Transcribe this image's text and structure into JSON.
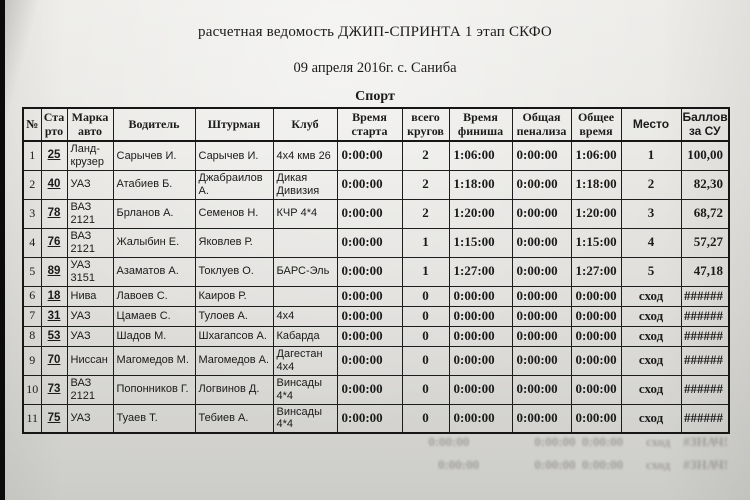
{
  "photo_colors": {
    "paper": "#e9e8e5",
    "ink": "#1b1b1b",
    "edge": "#0b0b0b"
  },
  "header": {
    "title": "расчетная ведомость ДЖИП-СПРИНТА 1 этап СКФО",
    "date_line": "09 апреля 2016г. с. Саниба",
    "category": "Спорт"
  },
  "table": {
    "columns": [
      {
        "key": "num",
        "label": "№"
      },
      {
        "key": "start",
        "label": "Ста\nрто"
      },
      {
        "key": "car",
        "label": "Марка\nавто"
      },
      {
        "key": "driver",
        "label": "Водитель"
      },
      {
        "key": "navigator",
        "label": "Штурман"
      },
      {
        "key": "club",
        "label": "Клуб"
      },
      {
        "key": "start_time",
        "label": "Время\nстарта"
      },
      {
        "key": "laps",
        "label": "всего\nкругов"
      },
      {
        "key": "finish_time",
        "label": "Время\nфиниша"
      },
      {
        "key": "penalty",
        "label": "Общая\nпенализа"
      },
      {
        "key": "total_time",
        "label": "Общее\nвремя"
      },
      {
        "key": "place",
        "label": "Место"
      },
      {
        "key": "points",
        "label": "Баллов\nза СУ"
      }
    ],
    "rows": [
      {
        "num": "1",
        "start": "25",
        "car": "Ланд-\nкрузер",
        "driver": "Сарычев И.",
        "navigator": "Сарычев И.",
        "club": "4х4 кмв 26",
        "start_time": "0:00:00",
        "laps": "2",
        "finish_time": "1:06:00",
        "penalty": "0:00:00",
        "total_time": "1:06:00",
        "place": "1",
        "points": "100,00"
      },
      {
        "num": "2",
        "start": "40",
        "car": "УАЗ",
        "driver": "Атабиев Б.",
        "navigator": "Джабраилов А.",
        "club": "Дикая\nДивизия",
        "start_time": "0:00:00",
        "laps": "2",
        "finish_time": "1:18:00",
        "penalty": "0:00:00",
        "total_time": "1:18:00",
        "place": "2",
        "points": "82,30"
      },
      {
        "num": "3",
        "start": "78",
        "car": "ВАЗ\n2121",
        "driver": "Брланов А.",
        "navigator": "Семенов Н.",
        "club": "КЧР 4*4",
        "start_time": "0:00:00",
        "laps": "2",
        "finish_time": "1:20:00",
        "penalty": "0:00:00",
        "total_time": "1:20:00",
        "place": "3",
        "points": "68,72"
      },
      {
        "num": "4",
        "start": "76",
        "car": "ВАЗ\n2121",
        "driver": "Жалыбин Е.",
        "navigator": "Яковлев Р.",
        "club": "",
        "start_time": "0:00:00",
        "laps": "1",
        "finish_time": "1:15:00",
        "penalty": "0:00:00",
        "total_time": "1:15:00",
        "place": "4",
        "points": "57,27"
      },
      {
        "num": "5",
        "start": "89",
        "car": "УАЗ\n3151",
        "driver": "Азаматов А.",
        "navigator": "Токлуев О.",
        "club": "БАРС-Эль",
        "start_time": "0:00:00",
        "laps": "1",
        "finish_time": "1:27:00",
        "penalty": "0:00:00",
        "total_time": "1:27:00",
        "place": "5",
        "points": "47,18"
      },
      {
        "num": "6",
        "start": "18",
        "car": "Нива",
        "driver": "Лавоев С.",
        "navigator": "Каиров Р.",
        "club": "",
        "start_time": "0:00:00",
        "laps": "0",
        "finish_time": "0:00:00",
        "penalty": "0:00:00",
        "total_time": "0:00:00",
        "place": "сход",
        "points": "######"
      },
      {
        "num": "7",
        "start": "31",
        "car": "УАЗ",
        "driver": "Цамаев С.",
        "navigator": "Тулоев А.",
        "club": "4х4",
        "start_time": "0:00:00",
        "laps": "0",
        "finish_time": "0:00:00",
        "penalty": "0:00:00",
        "total_time": "0:00:00",
        "place": "сход",
        "points": "######"
      },
      {
        "num": "8",
        "start": "53",
        "car": "УАЗ",
        "driver": "Шадов М.",
        "navigator": "Шхагапсов А.",
        "club": "Кабарда",
        "start_time": "0:00:00",
        "laps": "0",
        "finish_time": "0:00:00",
        "penalty": "0:00:00",
        "total_time": "0:00:00",
        "place": "сход",
        "points": "######"
      },
      {
        "num": "9",
        "start": "70",
        "car": "Ниссан",
        "driver": "Магомедов М.",
        "navigator": "Магомедов А.",
        "club": "Дагестан\n4х4",
        "start_time": "0:00:00",
        "laps": "0",
        "finish_time": "0:00:00",
        "penalty": "0:00:00",
        "total_time": "0:00:00",
        "place": "сход",
        "points": "######"
      },
      {
        "num": "10",
        "start": "73",
        "car": "ВАЗ\n2121",
        "driver": "Попонников Г.",
        "navigator": "Логвинов Д.",
        "club": "Винсады\n4*4",
        "start_time": "0:00:00",
        "laps": "0",
        "finish_time": "0:00:00",
        "penalty": "0:00:00",
        "total_time": "0:00:00",
        "place": "сход",
        "points": "######"
      },
      {
        "num": "11",
        "start": "75",
        "car": "УАЗ",
        "driver": "Туаев Т.",
        "navigator": "Тебиев А.",
        "club": "Винсады\n4*4",
        "start_time": "0:00:00",
        "laps": "0",
        "finish_time": "0:00:00",
        "penalty": "0:00:00",
        "total_time": "0:00:00",
        "place": "сход",
        "points": "######"
      }
    ]
  },
  "ghost": {
    "lines": [
      "0:00:00                    0:00:00  0:00:00       сход    #ЗНАЧ!",
      "0:00:00                 0:00:00  0:00:00       сход    #ЗНАЧ!"
    ]
  }
}
